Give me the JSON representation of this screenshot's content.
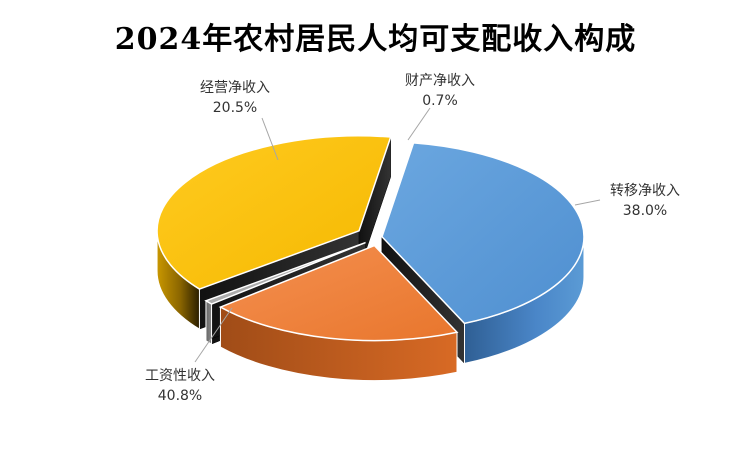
{
  "chart_data": {
    "type": "pie",
    "title": "2024年农村居民人均可支配收入构成",
    "slices": [
      {
        "label": "工资性收入",
        "value": 40.8,
        "display": "40.8%",
        "color": "#5b9bd5"
      },
      {
        "label": "经营净收入",
        "value": 20.5,
        "display": "20.5%",
        "color": "#f0823c"
      },
      {
        "label": "财产净收入",
        "value": 0.7,
        "display": "0.7%",
        "color": "#a5a5a5"
      },
      {
        "label": "转移净收入",
        "value": 38.0,
        "display": "38.0%",
        "color": "#ffc000"
      }
    ],
    "unit": "%",
    "legend": "none",
    "style": "3d-exploded"
  }
}
